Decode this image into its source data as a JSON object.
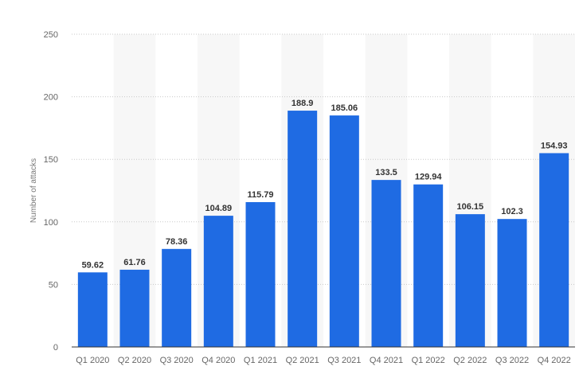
{
  "chart_data": {
    "type": "bar",
    "title": "",
    "xlabel": "",
    "ylabel": "Number of attacks",
    "ylim": [
      0,
      250
    ],
    "yticks": [
      0,
      50,
      100,
      150,
      200,
      250
    ],
    "grid": true,
    "categories": [
      "Q1 2020",
      "Q2 2020",
      "Q3 2020",
      "Q4 2020",
      "Q1 2021",
      "Q2 2021",
      "Q3 2021",
      "Q4 2021",
      "Q1 2022",
      "Q2 2022",
      "Q3 2022",
      "Q4 2022"
    ],
    "values": [
      59.62,
      61.76,
      78.36,
      104.89,
      115.79,
      188.9,
      185.06,
      133.5,
      129.94,
      106.15,
      102.3,
      154.93
    ],
    "value_labels": [
      "59.62",
      "61.76",
      "78.36",
      "104.89",
      "115.79",
      "188.9",
      "185.06",
      "133.5",
      "129.94",
      "106.15",
      "102.3",
      "154.93"
    ],
    "colors": {
      "bar": "#1f6be3",
      "band": "#f7f7f7",
      "grid": "#c9c9c9",
      "axis": "#333333"
    }
  }
}
